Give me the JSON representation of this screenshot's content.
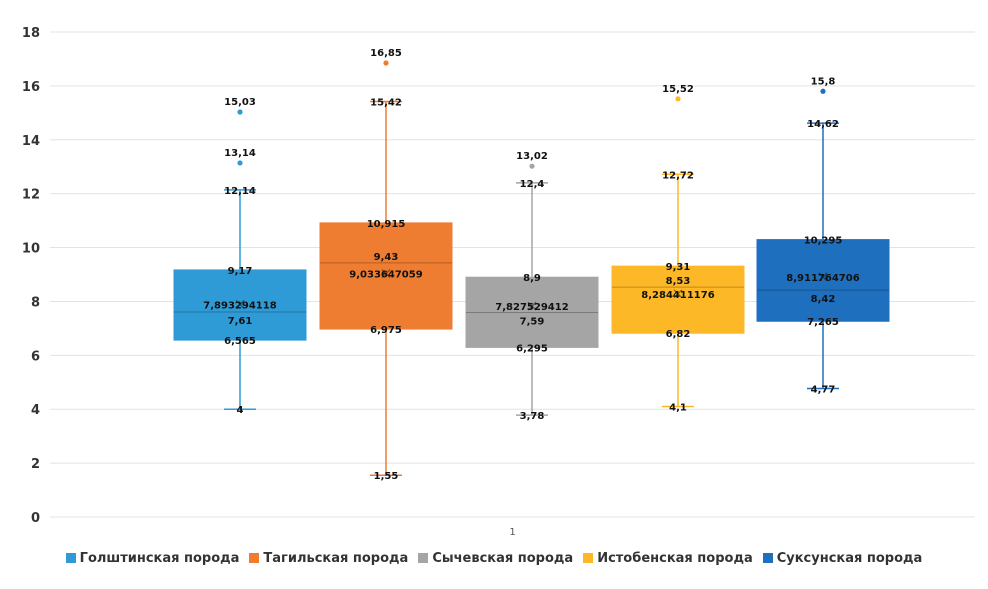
{
  "chart_data": {
    "type": "boxplot",
    "categories": [
      "1"
    ],
    "ylim": [
      0,
      18
    ],
    "y_ticks": [
      0,
      2,
      4,
      6,
      8,
      10,
      12,
      14,
      16,
      18
    ],
    "grid": true,
    "legend_position": "bottom",
    "series": [
      {
        "name": "Голштинская порода",
        "color": "#2E9BD6",
        "min": 4,
        "q1": 6.565,
        "median": 7.61,
        "mean": 7.893294118,
        "q3": 9.17,
        "max": 12.14,
        "outliers": [
          13.14,
          15.03
        ],
        "labels": {
          "min": "4",
          "q1": "6,565",
          "median": "7,61",
          "mean": "7,893294118",
          "q3": "9,17",
          "max": "12,14",
          "outliers": [
            "13,14",
            "15,03"
          ]
        }
      },
      {
        "name": "Тагильская порода",
        "color": "#EE7D31",
        "min": 1.55,
        "q1": 6.975,
        "median": 9.43,
        "mean": 9.033647059,
        "q3": 10.915,
        "max": 15.42,
        "outliers": [
          16.85
        ],
        "labels": {
          "min": "1,55",
          "q1": "6,975",
          "median": "9,43",
          "mean": "9,033647059",
          "q3": "10,915",
          "max": "15,42",
          "outliers": [
            "16,85"
          ]
        }
      },
      {
        "name": "Сычевская порода",
        "color": "#A5A5A5",
        "min": 3.78,
        "q1": 6.295,
        "median": 7.59,
        "mean": 7.827529412,
        "q3": 8.9,
        "max": 12.4,
        "outliers": [
          13.02
        ],
        "labels": {
          "min": "3,78",
          "q1": "6,295",
          "median": "7,59",
          "mean": "7,827529412",
          "q3": "8,9",
          "max": "12,4",
          "outliers": [
            "13,02"
          ]
        }
      },
      {
        "name": "Истобенская порода",
        "color": "#FDB827",
        "min": 4.1,
        "q1": 6.82,
        "median": 8.53,
        "mean": 8.284411176,
        "q3": 9.31,
        "max": 12.72,
        "outliers": [
          15.52
        ],
        "labels": {
          "min": "4,1",
          "q1": "6,82",
          "median": "8,53",
          "mean": "8,284411176",
          "q3": "9,31",
          "max": "12,72",
          "outliers": [
            "15,52"
          ]
        }
      },
      {
        "name": "Суксунская порода",
        "color": "#1F6FBF",
        "min": 4.77,
        "q1": 7.265,
        "median": 8.42,
        "mean": 8.911764706,
        "q3": 10.295,
        "max": 14.62,
        "outliers": [
          15.8
        ],
        "labels": {
          "min": "4,77",
          "q1": "7,265",
          "median": "8,42",
          "mean": "8,911764706",
          "q3": "10,295",
          "max": "14,62",
          "outliers": [
            "15,8"
          ]
        }
      }
    ]
  }
}
